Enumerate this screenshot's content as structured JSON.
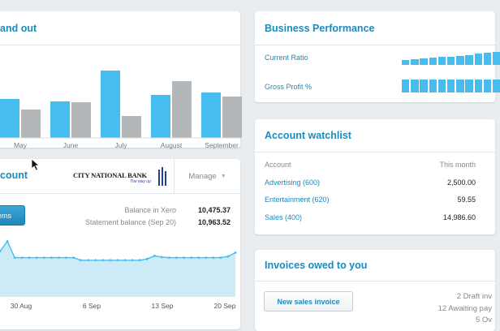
{
  "money_card": {
    "title": "and out",
    "chart_data": {
      "type": "bar",
      "categories": [
        "May",
        "June",
        "July",
        "August",
        "September"
      ],
      "series": [
        {
          "values": [
            48,
            45,
            83,
            53,
            56
          ]
        },
        {
          "values": [
            35,
            44,
            27,
            70,
            51
          ]
        }
      ],
      "colors": [
        "#46bdee",
        "#b4b7b9"
      ]
    }
  },
  "bank_card": {
    "title": "count",
    "bank_name": "CITY NATIONAL BANK",
    "bank_tagline": "The way up",
    "manage_label": "Manage",
    "reconcile_label": "ems",
    "balance_label": "Balance in Xero",
    "balance_value": "10,475.37",
    "statement_label": "Statement balance (Sep 20)",
    "statement_value": "10,963.52",
    "chart_data": {
      "type": "area",
      "x_labels": [
        "30 Aug",
        "6 Sep",
        "13 Sep",
        "20 Sep"
      ],
      "values": [
        0.72,
        0.88,
        0.62,
        0.62,
        0.62,
        0.62,
        0.62,
        0.62,
        0.62,
        0.62,
        0.62,
        0.58,
        0.58,
        0.58,
        0.58,
        0.58,
        0.58,
        0.58,
        0.58,
        0.58,
        0.6,
        0.65,
        0.63,
        0.62,
        0.62,
        0.62,
        0.62,
        0.62,
        0.62,
        0.62,
        0.62,
        0.64,
        0.7
      ],
      "color": "#46bdee"
    }
  },
  "performance_card": {
    "title": "Business Performance",
    "rows": [
      {
        "label": "Current Ratio",
        "segments": [
          0.4,
          0.45,
          0.5,
          0.55,
          0.6,
          0.65,
          0.7,
          0.78,
          0.85,
          0.92,
          1.0
        ]
      },
      {
        "label": "Gross Profit %",
        "segments": [
          1,
          1,
          1,
          1,
          1,
          1,
          1,
          1,
          1,
          1,
          1
        ]
      }
    ],
    "color": "#46bdee"
  },
  "watchlist_card": {
    "title": "Account watchlist",
    "col_account": "Account",
    "col_month": "This month",
    "rows": [
      {
        "account": "Advertising (600)",
        "month": "2,500.00"
      },
      {
        "account": "Entertainment (620)",
        "month": "59.55"
      },
      {
        "account": "Sales (400)",
        "month": "14,986.60"
      }
    ]
  },
  "invoices_card": {
    "title": "Invoices owed to you",
    "new_invoice_label": "New sales invoice",
    "summary": [
      "2 Draft inv",
      "12 Awaiting pay",
      "5 Ov"
    ]
  }
}
